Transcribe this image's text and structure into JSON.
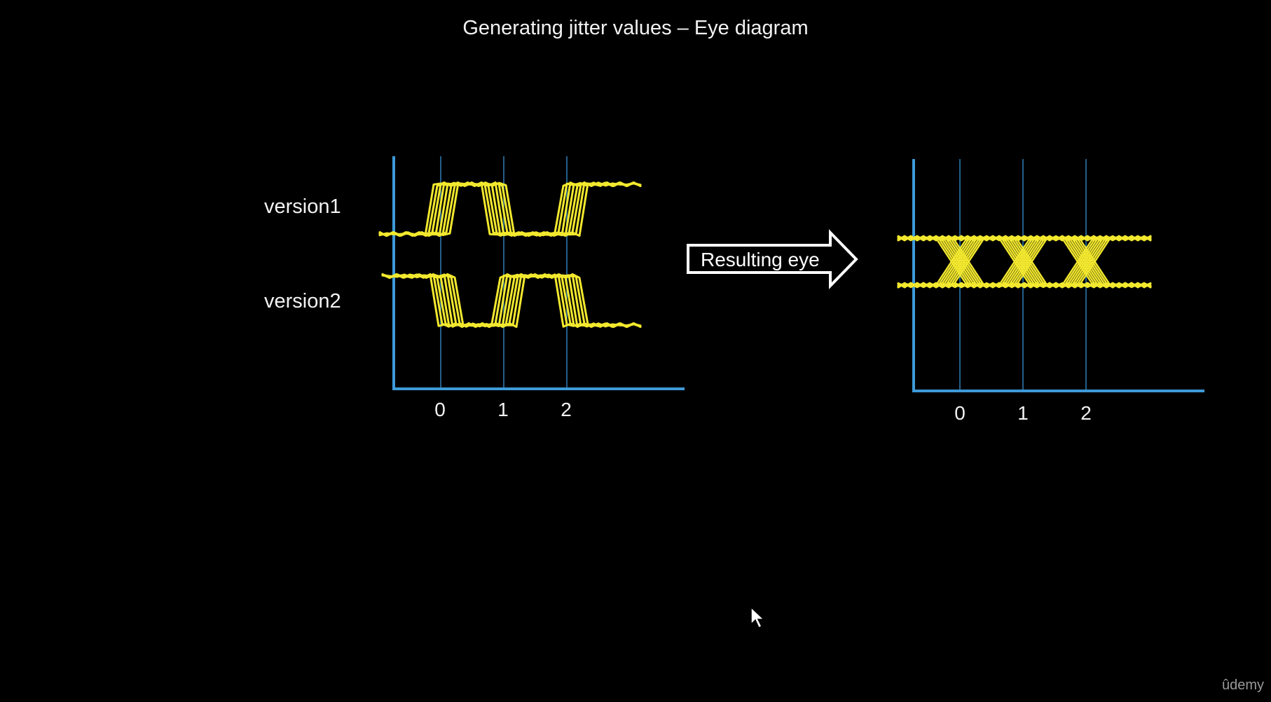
{
  "title": "Generating jitter values – Eye diagram",
  "labels": {
    "version1": "version1",
    "version2": "version2"
  },
  "arrow": {
    "label": "Resulting eye"
  },
  "left_plot": {
    "ticks": [
      "0",
      "1",
      "2"
    ]
  },
  "right_plot": {
    "ticks": [
      "0",
      "1",
      "2"
    ]
  },
  "watermark": "ûdemy",
  "colors": {
    "background": "#000000",
    "axis": "#3e9ad8",
    "gridline": "#2f7fb8",
    "trace": "#f2e82e",
    "text": "#f2f2f2"
  },
  "icons": {
    "cursor": "mouse-pointer-icon"
  }
}
